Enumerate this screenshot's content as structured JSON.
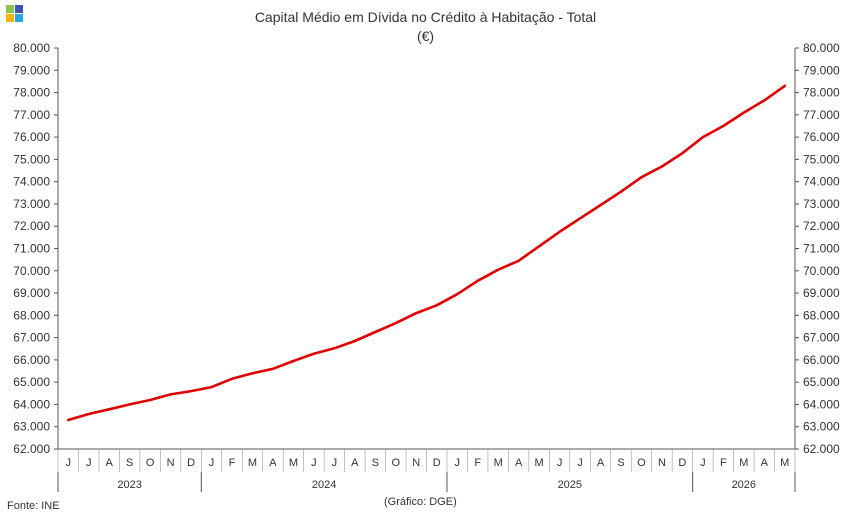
{
  "chart_data": {
    "type": "line",
    "title": "Capital Médio em Dívida no Crédito à Habitação - Total",
    "subtitle": "(€)",
    "ylim": [
      62000,
      80000
    ],
    "yticks": [
      "62.000",
      "63.000",
      "64.000",
      "65.000",
      "66.000",
      "67.000",
      "68.000",
      "69.000",
      "70.000",
      "71.000",
      "72.000",
      "73.000",
      "74.000",
      "75.000",
      "76.000",
      "77.000",
      "78.000",
      "79.000",
      "80.000"
    ],
    "x_month_labels": [
      "J",
      "J",
      "A",
      "S",
      "O",
      "N",
      "D",
      "J",
      "F",
      "M",
      "A",
      "M",
      "J",
      "J",
      "A",
      "S",
      "O",
      "N",
      "D",
      "J",
      "F",
      "M",
      "A",
      "M",
      "J",
      "J",
      "A",
      "S",
      "O",
      "N",
      "D",
      "J",
      "F",
      "M",
      "A",
      "M"
    ],
    "x_year_labels": [
      {
        "label": "2023",
        "start": 0,
        "end": 7
      },
      {
        "label": "2024",
        "start": 7,
        "end": 19
      },
      {
        "label": "2025",
        "start": 19,
        "end": 31
      },
      {
        "label": "2026",
        "start": 31,
        "end": 36
      }
    ],
    "series": [
      {
        "color": "#e00000",
        "x": [
          "2023-06",
          "2023-07",
          "2023-08",
          "2023-09",
          "2023-10",
          "2023-11",
          "2023-12",
          "2024-01",
          "2024-02",
          "2024-03",
          "2024-04",
          "2024-05",
          "2024-06",
          "2024-07",
          "2024-08",
          "2024-09",
          "2024-10",
          "2024-11",
          "2024-12",
          "2025-01",
          "2025-02",
          "2025-03",
          "2025-04",
          "2025-05",
          "2025-06",
          "2025-07",
          "2025-08",
          "2025-09",
          "2025-10",
          "2025-11",
          "2025-12",
          "2026-01",
          "2026-02",
          "2026-03",
          "2026-04",
          "2026-05"
        ],
        "values": [
          63300,
          63570,
          63780,
          64000,
          64200,
          64450,
          64600,
          64780,
          65150,
          65400,
          65600,
          65950,
          66280,
          66520,
          66850,
          67250,
          67650,
          68100,
          68450,
          68950,
          69550,
          70050,
          70450,
          71100,
          71750,
          72350,
          72950,
          73550,
          74200,
          74680,
          75280,
          76000,
          76500,
          77100,
          77650,
          78300
        ]
      }
    ],
    "grid": false,
    "legend": "none"
  },
  "footer": {
    "source": "Fonte: INE",
    "credit": "(Gráfico: DGE)"
  },
  "logo_colors": [
    "#8bc34a",
    "#3f51b5",
    "#f4b400",
    "#29a8e0"
  ]
}
